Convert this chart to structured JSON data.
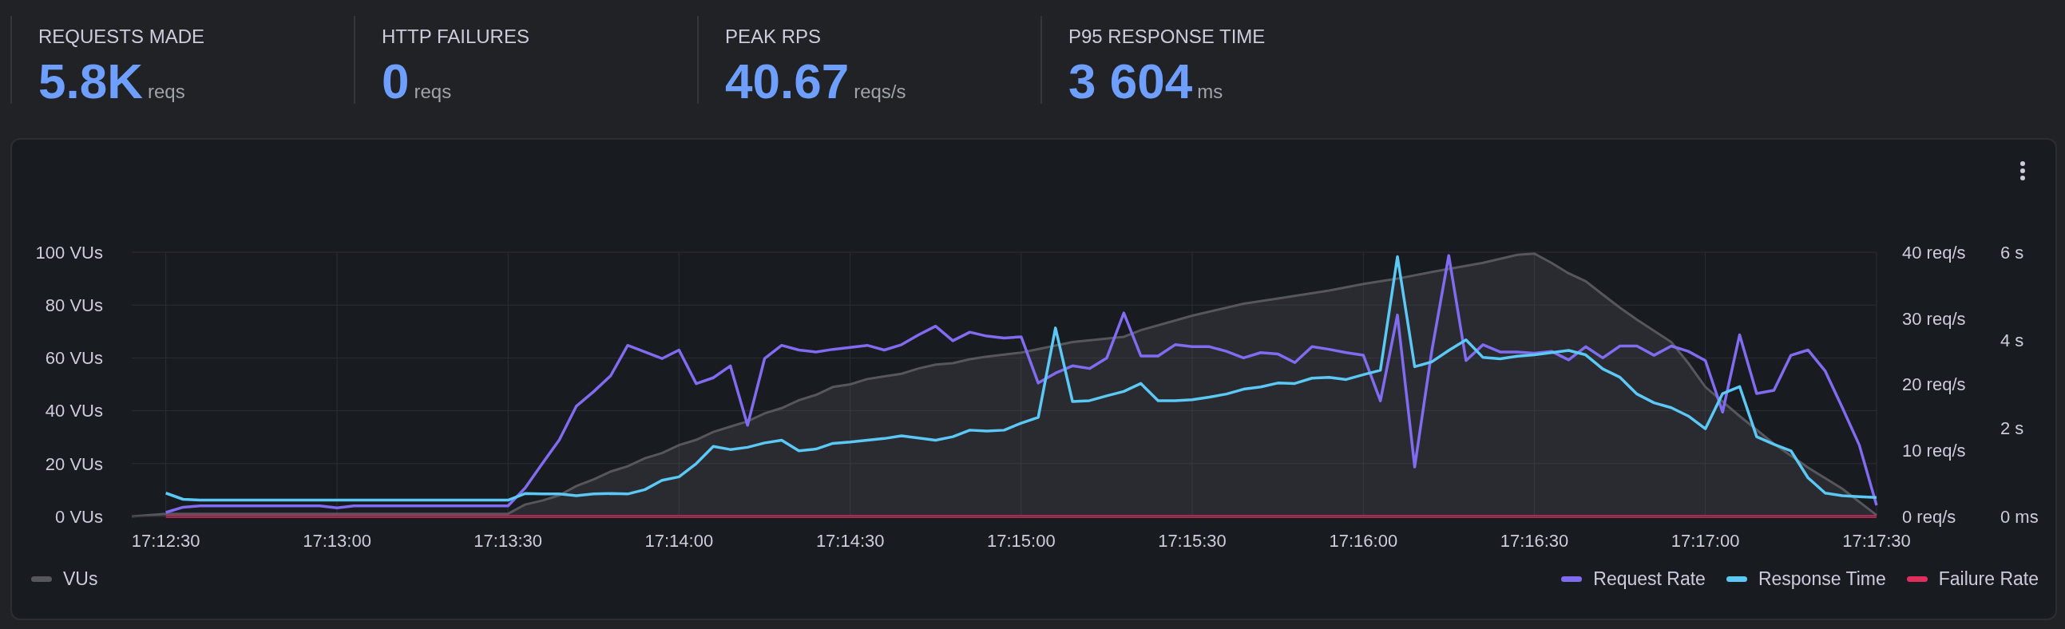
{
  "chart_data": [
    {
      "type": "other",
      "annotations": [
        "REQUESTS MADE",
        "5.8K",
        "reqs",
        "HTTP FAILURES",
        "0",
        "reqs",
        "PEAK RPS",
        "40.67",
        "reqs/s",
        "P95 RESPONSE TIME",
        "3 604",
        "ms"
      ]
    },
    {
      "type": "line",
      "x": [
        17.20833,
        17.20917,
        17.21,
        17.21583,
        17.21667,
        17.2175,
        17.225,
        17.22583,
        17.22667,
        17.2275,
        17.22833,
        17.22917,
        17.23,
        17.23083,
        17.23167,
        17.2325,
        17.23333,
        17.23417,
        17.235,
        17.23583,
        17.23667,
        17.2375,
        17.23833,
        17.23917,
        17.24,
        17.24083,
        17.24167,
        17.2425,
        17.24333,
        17.24417,
        17.245,
        17.24583,
        17.24667,
        17.2475,
        17.24833,
        17.24917,
        17.25,
        17.25083,
        17.25167,
        17.2525,
        17.25333,
        17.25417,
        17.255,
        17.25583,
        17.25667,
        17.2575,
        17.25833,
        17.25917,
        17.26,
        17.26083,
        17.26167,
        17.2625,
        17.26333,
        17.26417,
        17.265,
        17.26583,
        17.26667,
        17.2675,
        17.26833,
        17.26917,
        17.27,
        17.27083,
        17.27167,
        17.2725,
        17.27333,
        17.27417,
        17.275,
        17.27583,
        17.27667,
        17.2775,
        17.27833,
        17.27917,
        17.28,
        17.28083,
        17.28167,
        17.2825,
        17.28333,
        17.28417,
        17.285,
        17.28583,
        17.28667,
        17.2875,
        17.28833,
        17.28917,
        17.29,
        17.29083,
        17.29167
      ],
      "series": [
        {
          "name": "VUs",
          "type": "area",
          "color": "#55575c",
          "x": [
            17.20667,
            17.20833,
            17.225,
            17.22583,
            17.22667,
            17.2275,
            17.22833,
            17.22917,
            17.23,
            17.23083,
            17.23167,
            17.2325,
            17.23333,
            17.23417,
            17.235,
            17.23583,
            17.23667,
            17.2375,
            17.23833,
            17.23917,
            17.24,
            17.24083,
            17.24167,
            17.2425,
            17.24333,
            17.24417,
            17.245,
            17.24583,
            17.24667,
            17.2475,
            17.24833,
            17.25,
            17.2525,
            17.255,
            17.25583,
            17.25833,
            17.26083,
            17.2625,
            17.265,
            17.26667,
            17.26833,
            17.27,
            17.2725,
            17.27417,
            17.275,
            17.27583,
            17.27667,
            17.2775,
            17.27833,
            17.27917,
            17.28,
            17.28167,
            17.2825,
            17.28333,
            17.285,
            17.28667,
            17.28833,
            17.29,
            17.29167
          ],
          "values": [
            0,
            1,
            1,
            4.5,
            6,
            8,
            11.5,
            14,
            17,
            19,
            22,
            24,
            27,
            29,
            32,
            34,
            36,
            39,
            41,
            44,
            46,
            49,
            50,
            52,
            53,
            54,
            56,
            57.5,
            58,
            59.5,
            60.5,
            62,
            66,
            68,
            70.5,
            76,
            80.5,
            82.5,
            85.5,
            88,
            90,
            92.5,
            96,
            99,
            99.5,
            96,
            92,
            89,
            84,
            79,
            74.5,
            66,
            58,
            49,
            38,
            27.5,
            18.5,
            10.5,
            0.5
          ]
        },
        {
          "name": "Request Rate",
          "type": "line",
          "axis": "y2",
          "color": "#7f6cf0",
          "values": [
            0.6,
            1.4,
            1.6,
            1.6,
            1.3,
            1.6,
            1.6,
            4.3,
            8.0,
            11.6,
            16.7,
            18.9,
            21.3,
            25.9,
            24.9,
            23.9,
            25.2,
            20.1,
            21.0,
            22.8,
            13.8,
            23.9,
            25.9,
            25.2,
            24.9,
            25.3,
            25.6,
            25.9,
            25.2,
            26.0,
            27.5,
            28.8,
            26.6,
            27.9,
            27.3,
            27.0,
            27.2,
            20.2,
            21.7,
            22.8,
            22.4,
            24.0,
            30.8,
            24.3,
            24.3,
            26.0,
            25.7,
            25.7,
            25.0,
            24.0,
            24.8,
            24.6,
            23.3,
            25.7,
            25.3,
            24.8,
            24.4,
            17.5,
            30.5,
            7.5,
            25.0,
            39.5,
            23.6,
            26.0,
            24.9,
            24.9,
            24.7,
            25.0,
            23.7,
            25.7,
            24.0,
            25.8,
            25.8,
            24.4,
            25.8,
            25.0,
            23.6,
            15.8,
            27.5,
            18.6,
            19.1,
            24.4,
            25.2,
            22.0,
            16.5,
            10.8,
            1.7
          ]
        },
        {
          "name": "Response Time",
          "type": "line",
          "axis": "y3",
          "color": "#5bc8f5",
          "values": [
            0.53,
            0.39,
            0.37,
            0.37,
            0.37,
            0.37,
            0.37,
            0.52,
            0.51,
            0.51,
            0.47,
            0.51,
            0.52,
            0.51,
            0.61,
            0.82,
            0.9,
            1.2,
            1.59,
            1.52,
            1.57,
            1.67,
            1.73,
            1.49,
            1.53,
            1.66,
            1.69,
            1.73,
            1.77,
            1.83,
            1.78,
            1.73,
            1.81,
            1.96,
            1.94,
            1.96,
            2.12,
            2.25,
            4.28,
            2.61,
            2.63,
            2.74,
            2.84,
            3.02,
            2.63,
            2.63,
            2.65,
            2.71,
            2.78,
            2.89,
            2.94,
            3.03,
            3.02,
            3.14,
            3.16,
            3.11,
            3.22,
            3.32,
            5.9,
            3.4,
            3.51,
            3.77,
            4.01,
            3.61,
            3.58,
            3.64,
            3.67,
            3.72,
            3.77,
            3.67,
            3.35,
            3.16,
            2.78,
            2.58,
            2.47,
            2.28,
            1.99,
            2.79,
            2.95,
            1.81,
            1.64,
            1.49,
            0.88,
            0.53,
            0.47,
            0.45,
            0.43
          ]
        },
        {
          "name": "Failure Rate",
          "type": "line",
          "axis": "y2",
          "color": "#e02f5f",
          "x": [
            17.20833,
            17.21667,
            17.225,
            17.23333,
            17.24167,
            17.25,
            17.25833,
            17.26667,
            17.275,
            17.28333,
            17.29167
          ],
          "values": [
            0,
            0,
            0,
            0,
            0,
            0,
            0,
            0,
            0,
            0,
            0
          ]
        }
      ],
      "xlim": [
        17.20667,
        17.29167
      ],
      "xticks": [
        {
          "value": 17.20833,
          "label": "17:12:30"
        },
        {
          "value": 17.21667,
          "label": "17:13:00"
        },
        {
          "value": 17.225,
          "label": "17:13:30"
        },
        {
          "value": 17.23333,
          "label": "17:14:00"
        },
        {
          "value": 17.24167,
          "label": "17:14:30"
        },
        {
          "value": 17.25,
          "label": "17:15:00"
        },
        {
          "value": 17.25833,
          "label": "17:15:30"
        },
        {
          "value": 17.26667,
          "label": "17:16:00"
        },
        {
          "value": 17.275,
          "label": "17:16:30"
        },
        {
          "value": 17.28333,
          "label": "17:17:00"
        },
        {
          "value": 17.29167,
          "label": "17:17:30"
        }
      ],
      "ylim": [
        0,
        100
      ],
      "yticks": [
        {
          "value": 0,
          "label": "0 VUs"
        },
        {
          "value": 20,
          "label": "20 VUs"
        },
        {
          "value": 40,
          "label": "40 VUs"
        },
        {
          "value": 60,
          "label": "60 VUs"
        },
        {
          "value": 80,
          "label": "80 VUs"
        },
        {
          "value": 100,
          "label": "100 VUs"
        }
      ],
      "y2lim": [
        0,
        40
      ],
      "y2ticks": [
        {
          "value": 0,
          "label": "0 req/s"
        },
        {
          "value": 10,
          "label": "10 req/s"
        },
        {
          "value": 20,
          "label": "20 req/s"
        },
        {
          "value": 30,
          "label": "30 req/s"
        },
        {
          "value": 40,
          "label": "40 req/s"
        }
      ],
      "y3lim": [
        0,
        6
      ],
      "y3ticks": [
        {
          "value": 0,
          "label": "0 ms"
        },
        {
          "value": 2,
          "label": "2 s"
        },
        {
          "value": 4,
          "label": "4 s"
        },
        {
          "value": 6,
          "label": "6 s"
        }
      ],
      "grid": true,
      "legend": "bottom"
    }
  ]
}
